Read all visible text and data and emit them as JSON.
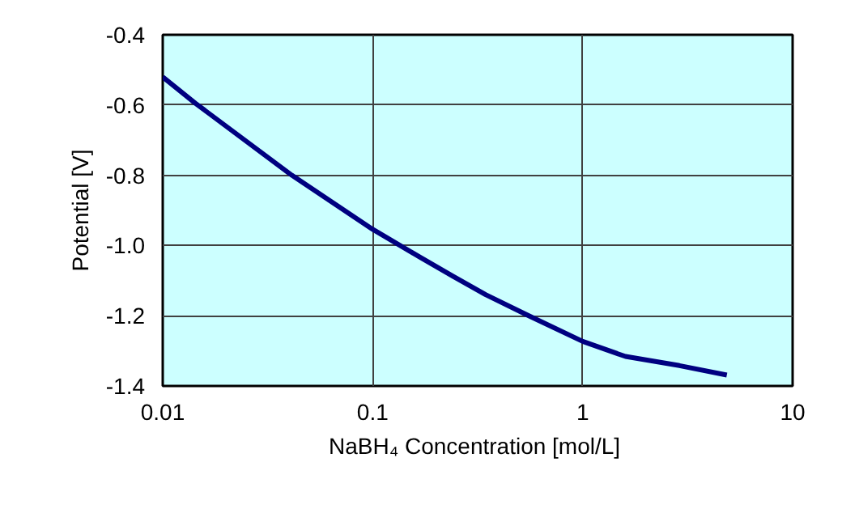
{
  "chart_data": {
    "type": "line",
    "xlabel": "NaBH₄  Concentration [mol/L]",
    "ylabel": "Potential [V]",
    "log": "x",
    "xlim": [
      0.01,
      10
    ],
    "xticks": [
      0.01,
      0.1,
      1,
      10
    ],
    "ylim": [
      -1.4,
      -0.4
    ],
    "yticks": [
      {
        "value": -1.4,
        "label": "-1.4"
      },
      {
        "value": -1.2,
        "label": "-1.2"
      },
      {
        "value": -1.0,
        "label": "-1.0"
      },
      {
        "value": -0.8,
        "label": "-0.8"
      },
      {
        "value": -0.6,
        "label": "-0.6"
      },
      {
        "value": -0.4,
        "label": "-0.4"
      }
    ],
    "grid": true,
    "line_style": "solid",
    "series": [
      {
        "color": "#000080",
        "x": [
          0.01,
          0.0143,
          0.0412,
          0.1,
          0.17,
          0.242,
          0.345,
          0.554,
          1,
          1.6,
          2.89,
          4.86
        ],
        "values": [
          -0.52,
          -0.595,
          -0.8,
          -0.954,
          -1.035,
          -1.088,
          -1.14,
          -1.2,
          -1.273,
          -1.316,
          -1.342,
          -1.369
        ]
      }
    ]
  }
}
